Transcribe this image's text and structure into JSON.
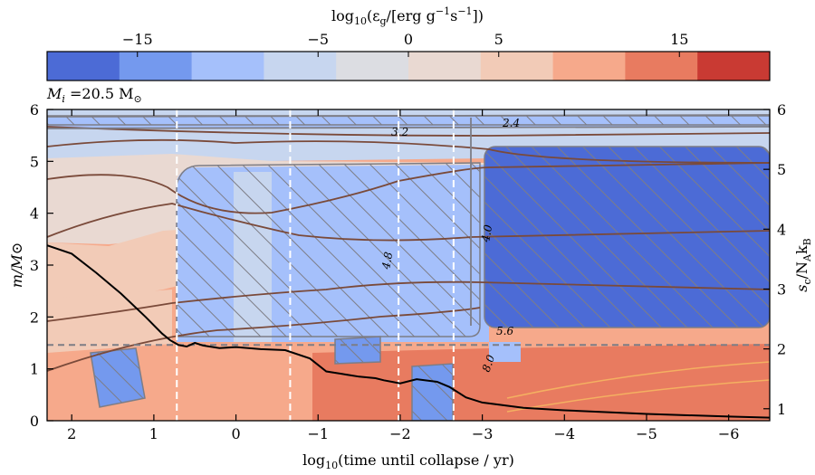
{
  "chart_data": {
    "type": "heatmap",
    "panel_label": "M_i =20.5 M⊙",
    "panel_label_parts": {
      "symbol": "M",
      "sub": "i",
      "value": " =20.5 M",
      "sun": "⊙"
    },
    "colorbar": {
      "label": "log10(εg/[erg g−1s−1])",
      "label_parts": {
        "log": "log",
        "ten": "10",
        "open": "(ε",
        "g": "g",
        "mid": "/[erg g",
        "m1": "−1",
        "s": "s",
        "m1b": "−1",
        "close": "])"
      },
      "range": [
        -20,
        20
      ],
      "ticks": [
        -15,
        -5,
        0,
        5,
        15
      ],
      "tick_labels": [
        "−15",
        "−5",
        "0",
        "5",
        "15"
      ],
      "colors": [
        "#4c6bd6",
        "#7499ee",
        "#a5c0fb",
        "#c7d6ef",
        "#dcdde2",
        "#e9d9d2",
        "#f2cbb7",
        "#f6a98b",
        "#e87b60",
        "#c93a33"
      ]
    },
    "x_axis": {
      "label": "log10(time until collapse / yr)",
      "label_parts": {
        "log": "log",
        "ten": "10",
        "rest": "(time until collapse / yr)"
      },
      "range": [
        2.3,
        -6.5
      ],
      "ticks": [
        2,
        1,
        0,
        -1,
        -2,
        -3,
        -4,
        -5,
        -6
      ],
      "tick_labels": [
        "2",
        "1",
        "0",
        "−1",
        "−2",
        "−3",
        "−4",
        "−5",
        "−6"
      ]
    },
    "y_axis": {
      "label": "m/M⊙",
      "range": [
        0,
        6
      ],
      "ticks": [
        0,
        1,
        2,
        3,
        4,
        5,
        6
      ],
      "tick_labels": [
        "0",
        "1",
        "2",
        "3",
        "4",
        "5",
        "6"
      ]
    },
    "y2_axis": {
      "label": "sc/NAkB",
      "label_parts": {
        "s": "s",
        "c": "c",
        "slash": "/N",
        "A": "A",
        "k": "k",
        "B": "B"
      },
      "range": [
        0.8,
        6
      ],
      "ticks": [
        1,
        2,
        3,
        4,
        5,
        6
      ],
      "tick_labels": [
        "1",
        "2",
        "3",
        "4",
        "5",
        "6"
      ]
    },
    "vertical_dashed_lines_x": [
      0.72,
      -0.66,
      -1.98,
      -2.65
    ],
    "horizontal_dashed_line_y": 1.46,
    "contour_labels": [
      "3.2",
      "2.4",
      "4.0",
      "4.8",
      "5.6",
      "8.0"
    ],
    "central_entropy_curve": {
      "x": [
        2.3,
        2.0,
        1.7,
        1.4,
        1.1,
        0.9,
        0.8,
        0.7,
        0.6,
        0.5,
        0.4,
        0.2,
        0.0,
        -0.3,
        -0.6,
        -0.9,
        -1.1,
        -1.3,
        -1.5,
        -1.7,
        -1.8,
        -1.9,
        -2.0,
        -2.2,
        -2.45,
        -2.6,
        -2.8,
        -3.0,
        -3.5,
        -4.0,
        -5.0,
        -6.0,
        -6.5
      ],
      "y": [
        3.38,
        3.22,
        2.85,
        2.45,
        2.0,
        1.68,
        1.55,
        1.46,
        1.43,
        1.5,
        1.45,
        1.4,
        1.42,
        1.38,
        1.36,
        1.2,
        0.95,
        0.9,
        0.85,
        0.82,
        0.78,
        0.75,
        0.72,
        0.8,
        0.75,
        0.65,
        0.45,
        0.35,
        0.25,
        0.2,
        0.13,
        0.08,
        0.06
      ]
    }
  }
}
